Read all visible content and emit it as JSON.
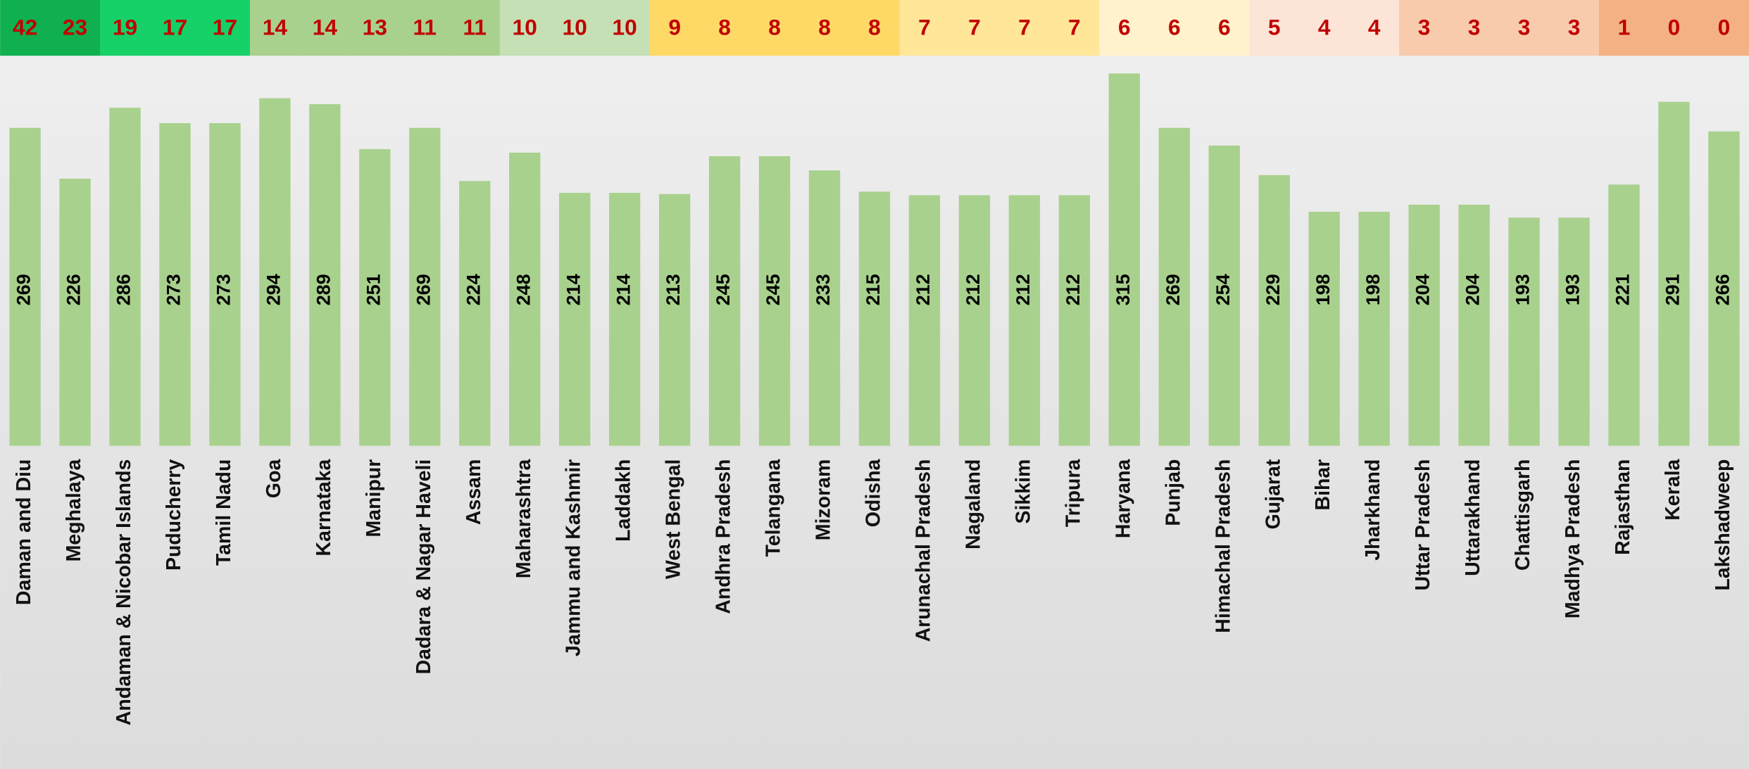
{
  "chart_data": {
    "type": "bar",
    "categories": [
      "Daman and Diu",
      "Meghalaya",
      "Andaman & Nicobar Islands",
      "Puducherry",
      "Tamil Nadu",
      "Goa",
      "Karnataka",
      "Manipur",
      "Dadara & Nagar Haveli",
      "Assam",
      "Maharashtra",
      "Jammu and Kashmir",
      "Laddakh",
      "West Bengal",
      "Andhra Pradesh",
      "Telangana",
      "Mizoram",
      "Odisha",
      "Arunachal Pradesh",
      "Nagaland",
      "Sikkim",
      "Tripura",
      "Haryana",
      "Punjab",
      "Himachal Pradesh",
      "Gujarat",
      "Bihar",
      "Jharkhand",
      "Uttar Pradesh",
      "Uttarakhand",
      "Chattisgarh",
      "Madhya Pradesh",
      "Rajasthan",
      "Kerala",
      "Lakshadweep"
    ],
    "values": [
      269,
      226,
      286,
      273,
      273,
      294,
      289,
      251,
      269,
      224,
      248,
      214,
      214,
      213,
      245,
      245,
      233,
      215,
      212,
      212,
      212,
      212,
      315,
      269,
      254,
      229,
      198,
      198,
      204,
      204,
      193,
      193,
      221,
      291,
      266
    ],
    "color": "#a9d18e",
    "ylim": [
      0,
      330
    ],
    "top_values": [
      42,
      23,
      19,
      17,
      17,
      14,
      14,
      13,
      11,
      11,
      10,
      10,
      10,
      9,
      8,
      8,
      8,
      8,
      7,
      7,
      7,
      7,
      6,
      6,
      6,
      5,
      4,
      4,
      3,
      3,
      3,
      3,
      1,
      0,
      0
    ],
    "top_colors": [
      "#10b050",
      "#10b050",
      "#16d068",
      "#16d068",
      "#16d068",
      "#a9d18e",
      "#a9d18e",
      "#a9d18e",
      "#a9d18e",
      "#a9d18e",
      "#c5e0b4",
      "#c5e0b4",
      "#c5e0b4",
      "#ffd966",
      "#ffd966",
      "#ffd966",
      "#ffd966",
      "#ffd966",
      "#ffe699",
      "#ffe699",
      "#ffe699",
      "#ffe699",
      "#fff2cc",
      "#fff2cc",
      "#fff2cc",
      "#fce4d6",
      "#fce4d6",
      "#fce4d6",
      "#f8cbad",
      "#f8cbad",
      "#f8cbad",
      "#f8cbad",
      "#f4b183",
      "#f4b183",
      "#f4b183"
    ],
    "top_text_color": "#c00000"
  }
}
